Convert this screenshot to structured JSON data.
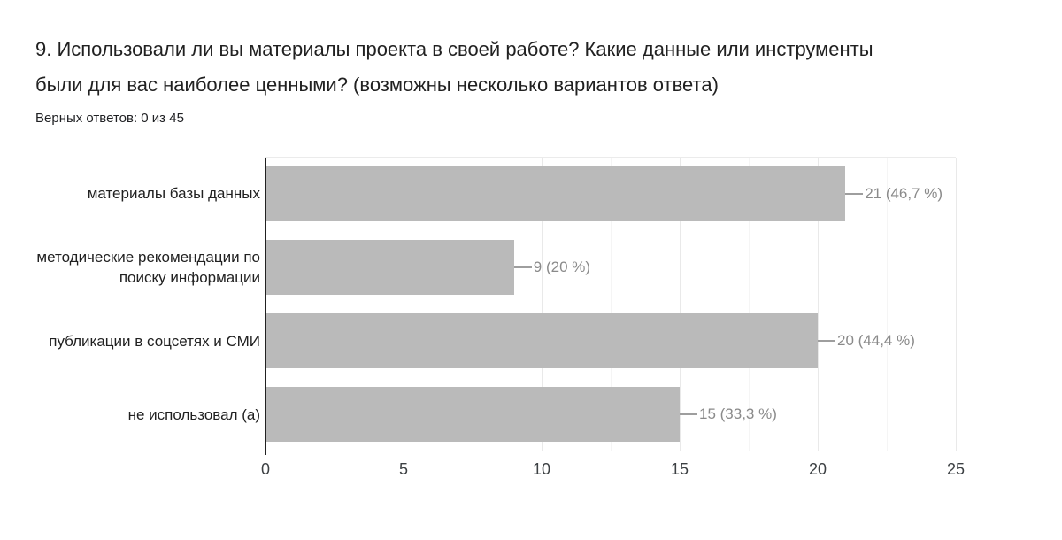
{
  "header": {
    "title_line1": "9. Использовали ли вы материалы проекта в своей работе? Какие данные или инструменты",
    "title_line2": "были для вас наиболее ценными? (возможны несколько вариантов ответа)",
    "subtitle": "Верных ответов: 0 из 45"
  },
  "chart_data": {
    "type": "bar",
    "orientation": "horizontal",
    "title": "9. Использовали ли вы материалы проекта в своей работе? Какие данные или инструменты были для вас наиболее ценными? (возможны несколько вариантов ответа)",
    "subtitle": "Верных ответов: 0 из 45",
    "categories": [
      "материалы базы данных",
      "методические рекомендации по поиску информации",
      "публикации в соцсетях и СМИ",
      "не использовал (а)"
    ],
    "values": [
      21,
      9,
      20,
      15
    ],
    "annotations": [
      "21 (46,7 %)",
      "9 (20 %)",
      "20 (44,4 %)",
      "15 (33,3 %)"
    ],
    "percentages_pct": [
      46.7,
      20,
      44.4,
      33.3
    ],
    "total_responses": 45,
    "xlim": [
      0,
      25
    ],
    "x_ticks": [
      0,
      5,
      10,
      15,
      20,
      25
    ],
    "minor_grid_step": 2.5,
    "grid": true,
    "legend": "none",
    "colors": {
      "bar": "#bababa",
      "annotation_text": "#8a8a8a",
      "annotation_line": "#9e9e9e",
      "axis_line": "#212121",
      "major_gridline": "#e9e9e9",
      "minor_gridline": "#f5f5f5",
      "tick_label": "#3c4043",
      "category_label": "#212121",
      "title": "#212121"
    }
  }
}
